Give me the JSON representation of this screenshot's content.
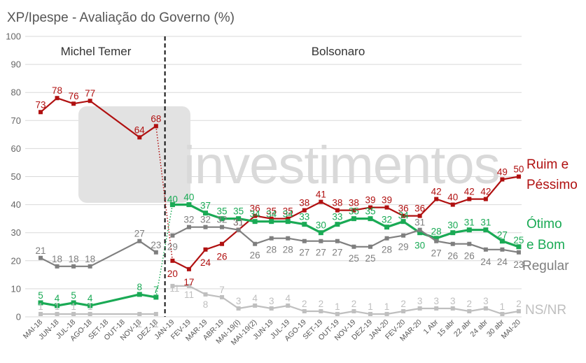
{
  "chart_data": {
    "type": "line",
    "title": "XP/Ipespe - Avaliação do Governo (%)",
    "watermark": "investimentos",
    "ylim": [
      0,
      100
    ],
    "yticks": [
      0,
      10,
      20,
      30,
      40,
      50,
      60,
      70,
      80,
      90,
      100
    ],
    "grid": true,
    "x": [
      "MAI-18",
      "JUN-18",
      "JUL-18",
      "AGO-18",
      "SET-18",
      "OUT-18",
      "NOV-18",
      "DEZ-18",
      "JAN-19",
      "FEV-19",
      "MAR-19",
      "ABR-19",
      "MAI-19(I)",
      "MAI-19(2)",
      "JUN-19",
      "JUL-19",
      "AGO-19",
      "SET-19",
      "OUT-19",
      "NOV-19",
      "DEZ-19",
      "JAN-20",
      "FEV-20",
      "MAR-20",
      "1 Abr",
      "15 abr",
      "22 abr",
      "24 abr",
      "30 abr",
      "MAI-20"
    ],
    "periods": [
      {
        "label": "Michel Temer"
      },
      {
        "label": "Bolsonaro"
      }
    ],
    "series": [
      {
        "name": "Ruim e Péssimo",
        "name_lines": [
          "Ruim e",
          "Péssimo"
        ],
        "color": "#b01010",
        "temer": [
          [
            0,
            73
          ],
          [
            1,
            78
          ],
          [
            2,
            76
          ],
          [
            3,
            77
          ],
          [
            6,
            64
          ],
          [
            7,
            68
          ]
        ],
        "bolsonaro": [
          [
            8,
            20
          ],
          [
            9,
            17
          ],
          [
            10,
            24
          ],
          [
            11,
            26
          ],
          [
            12,
            31
          ],
          [
            13,
            36
          ],
          [
            14,
            35
          ],
          [
            15,
            35
          ],
          [
            16,
            38
          ],
          [
            17,
            41
          ],
          [
            18,
            38
          ],
          [
            19,
            38
          ],
          [
            20,
            39
          ],
          [
            21,
            39
          ],
          [
            22,
            36
          ],
          [
            23,
            36
          ],
          [
            24,
            42
          ],
          [
            25,
            40
          ],
          [
            26,
            42
          ],
          [
            27,
            42
          ],
          [
            28,
            49
          ],
          [
            29,
            50
          ]
        ],
        "transition": [
          7,
          68,
          8,
          20
        ]
      },
      {
        "name": "Ótimo e Bom",
        "name_lines": [
          "Ótimo",
          "e Bom"
        ],
        "color": "#1aaa55",
        "temer": [
          [
            0,
            5
          ],
          [
            1,
            4
          ],
          [
            2,
            5
          ],
          [
            3,
            4
          ],
          [
            6,
            8
          ],
          [
            7,
            7
          ]
        ],
        "bolsonaro": [
          [
            8,
            40
          ],
          [
            9,
            40
          ],
          [
            10,
            37
          ],
          [
            11,
            35
          ],
          [
            12,
            35
          ],
          [
            13,
            34
          ],
          [
            14,
            34
          ],
          [
            15,
            34
          ],
          [
            16,
            33
          ],
          [
            17,
            30
          ],
          [
            18,
            33
          ],
          [
            19,
            35
          ],
          [
            20,
            35
          ],
          [
            21,
            32
          ],
          [
            22,
            34
          ],
          [
            23,
            30
          ],
          [
            24,
            28
          ],
          [
            25,
            30
          ],
          [
            26,
            31
          ],
          [
            27,
            31
          ],
          [
            28,
            27
          ],
          [
            29,
            25
          ]
        ],
        "transition": [
          7,
          7,
          8,
          40
        ]
      },
      {
        "name": "Regular",
        "name_lines": [
          "Regular"
        ],
        "color": "#7f7f7f",
        "temer": [
          [
            0,
            21
          ],
          [
            1,
            18
          ],
          [
            2,
            18
          ],
          [
            3,
            18
          ],
          [
            6,
            27
          ],
          [
            7,
            23
          ]
        ],
        "bolsonaro": [
          [
            8,
            29
          ],
          [
            9,
            32
          ],
          [
            10,
            32
          ],
          [
            11,
            32
          ],
          [
            12,
            31
          ],
          [
            13,
            26
          ],
          [
            14,
            28
          ],
          [
            15,
            28
          ],
          [
            16,
            27
          ],
          [
            17,
            27
          ],
          [
            18,
            27
          ],
          [
            19,
            25
          ],
          [
            20,
            25
          ],
          [
            21,
            28
          ],
          [
            22,
            29
          ],
          [
            23,
            31
          ],
          [
            24,
            27
          ],
          [
            25,
            26
          ],
          [
            26,
            26
          ],
          [
            27,
            24
          ],
          [
            28,
            24
          ],
          [
            29,
            23
          ]
        ],
        "transition": null
      },
      {
        "name": "NS/NR",
        "name_lines": [
          "NS/NR"
        ],
        "color": "#bfbfbf",
        "temer": [
          [
            0,
            1
          ],
          [
            1,
            1
          ],
          [
            2,
            1
          ],
          [
            3,
            1
          ],
          [
            6,
            1
          ],
          [
            7,
            1
          ]
        ],
        "bolsonaro": [
          [
            8,
            11
          ],
          [
            9,
            11
          ],
          [
            10,
            8
          ],
          [
            11,
            7
          ],
          [
            12,
            3
          ],
          [
            13,
            4
          ],
          [
            14,
            3
          ],
          [
            15,
            4
          ],
          [
            16,
            2
          ],
          [
            17,
            2
          ],
          [
            18,
            1
          ],
          [
            19,
            2
          ],
          [
            20,
            1
          ],
          [
            21,
            1
          ],
          [
            22,
            2
          ],
          [
            23,
            3
          ],
          [
            24,
            3
          ],
          [
            25,
            3
          ],
          [
            26,
            2
          ],
          [
            27,
            3
          ],
          [
            28,
            1
          ],
          [
            29,
            2
          ]
        ],
        "transition": null
      }
    ]
  }
}
